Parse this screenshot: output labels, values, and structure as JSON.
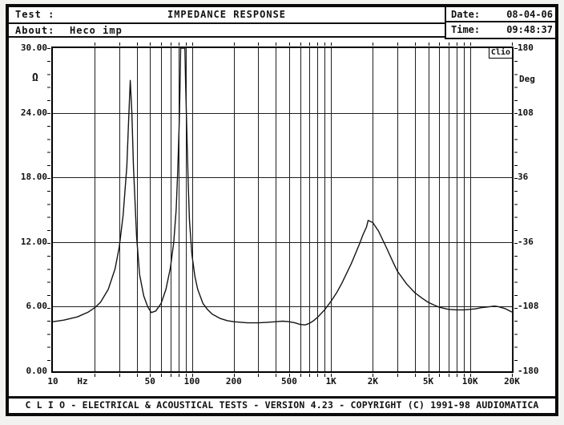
{
  "header": {
    "test_label": "Test :",
    "title": "IMPEDANCE RESPONSE",
    "about_label": "About:",
    "about_value": "Heco imp",
    "date_label": "Date:",
    "date_value": "08-04-06",
    "time_label": "Time:",
    "time_value": "09:48:37"
  },
  "footer": {
    "text": "C L I O  -  ELECTRICAL & ACOUSTICAL TESTS  -  VERSION 4.23  -  COPYRIGHT (C) 1991-98 AUDIOMATICA"
  },
  "chart_data": {
    "type": "line",
    "title": "IMPEDANCE RESPONSE",
    "logo": "Clio",
    "grid": true,
    "colors": {
      "curve": "#141414",
      "grid": "#1f1f1f",
      "frame": "#000000"
    },
    "x_axis": {
      "scale": "log",
      "unit": "Hz",
      "min": 10,
      "max": 20000,
      "tick_labels": [
        [
          "10",
          10
        ],
        [
          "50",
          50
        ],
        [
          "100",
          100
        ],
        [
          "200",
          200
        ],
        [
          "500",
          500
        ],
        [
          "1K",
          1000
        ],
        [
          "2K",
          2000
        ],
        [
          "5K",
          5000
        ],
        [
          "10K",
          10000
        ],
        [
          "20K",
          20000
        ]
      ],
      "gridlines": [
        20,
        30,
        40,
        50,
        60,
        70,
        80,
        90,
        100,
        200,
        300,
        400,
        500,
        600,
        700,
        800,
        900,
        1000,
        2000,
        3000,
        4000,
        5000,
        6000,
        7000,
        8000,
        9000,
        10000,
        20000
      ]
    },
    "y_left": {
      "unit": "Ω",
      "min": 0,
      "max": 30,
      "tick_labels": [
        [
          "30.00",
          30
        ],
        [
          "24.00",
          24
        ],
        [
          "18.00",
          18
        ],
        [
          "12.00",
          12
        ],
        [
          "6.00",
          6
        ],
        [
          "0.00",
          0
        ]
      ],
      "gridlines": [
        6,
        12,
        18,
        24
      ]
    },
    "y_right": {
      "unit": "Deg",
      "min": -180,
      "max": 180,
      "tick_labels": [
        [
          "180",
          180
        ],
        [
          "108",
          108
        ],
        [
          "36",
          36
        ],
        [
          "-36",
          -36
        ],
        [
          "-108",
          -108
        ],
        [
          "-180",
          -180
        ]
      ]
    },
    "series": [
      {
        "name": "impedance magnitude (ohms vs Hz)",
        "points": [
          [
            10,
            4.6
          ],
          [
            12,
            4.75
          ],
          [
            15,
            5.05
          ],
          [
            18,
            5.5
          ],
          [
            20,
            5.9
          ],
          [
            22,
            6.4
          ],
          [
            25,
            7.6
          ],
          [
            28,
            9.5
          ],
          [
            30,
            11.5
          ],
          [
            32,
            14.5
          ],
          [
            34,
            19
          ],
          [
            35,
            23
          ],
          [
            36,
            27
          ],
          [
            37,
            24
          ],
          [
            38,
            19
          ],
          [
            40,
            12.5
          ],
          [
            42,
            9
          ],
          [
            45,
            7
          ],
          [
            48,
            6
          ],
          [
            51,
            5.45
          ],
          [
            55,
            5.6
          ],
          [
            60,
            6.3
          ],
          [
            65,
            7.6
          ],
          [
            70,
            9.6
          ],
          [
            74,
            12
          ],
          [
            77,
            15
          ],
          [
            79,
            18.5
          ],
          [
            81,
            23
          ],
          [
            82,
            26
          ],
          [
            83,
            30
          ],
          [
            89,
            30
          ],
          [
            90,
            27
          ],
          [
            92,
            22
          ],
          [
            94,
            17.5
          ],
          [
            96,
            14
          ],
          [
            100,
            10.8
          ],
          [
            105,
            8.8
          ],
          [
            110,
            7.6
          ],
          [
            120,
            6.3
          ],
          [
            130,
            5.7
          ],
          [
            140,
            5.3
          ],
          [
            160,
            4.9
          ],
          [
            180,
            4.7
          ],
          [
            200,
            4.6
          ],
          [
            250,
            4.5
          ],
          [
            300,
            4.5
          ],
          [
            350,
            4.55
          ],
          [
            400,
            4.6
          ],
          [
            450,
            4.65
          ],
          [
            500,
            4.6
          ],
          [
            550,
            4.5
          ],
          [
            600,
            4.35
          ],
          [
            650,
            4.3
          ],
          [
            700,
            4.45
          ],
          [
            750,
            4.7
          ],
          [
            800,
            5.0
          ],
          [
            900,
            5.7
          ],
          [
            1000,
            6.5
          ],
          [
            1100,
            7.3
          ],
          [
            1200,
            8.2
          ],
          [
            1400,
            10
          ],
          [
            1600,
            11.8
          ],
          [
            1700,
            12.7
          ],
          [
            1800,
            13.4
          ],
          [
            1850,
            14.0
          ],
          [
            2000,
            13.8
          ],
          [
            2200,
            13.0
          ],
          [
            2500,
            11.5
          ],
          [
            2800,
            10.1
          ],
          [
            3000,
            9.3
          ],
          [
            3500,
            8.1
          ],
          [
            4000,
            7.3
          ],
          [
            4500,
            6.8
          ],
          [
            5000,
            6.4
          ],
          [
            5500,
            6.15
          ],
          [
            6000,
            5.95
          ],
          [
            7000,
            5.75
          ],
          [
            8000,
            5.7
          ],
          [
            9000,
            5.7
          ],
          [
            10000,
            5.75
          ],
          [
            11000,
            5.8
          ],
          [
            12000,
            5.9
          ],
          [
            13000,
            5.95
          ],
          [
            15000,
            6.05
          ],
          [
            16000,
            6.0
          ],
          [
            18000,
            5.8
          ],
          [
            20000,
            5.5
          ]
        ]
      }
    ]
  }
}
